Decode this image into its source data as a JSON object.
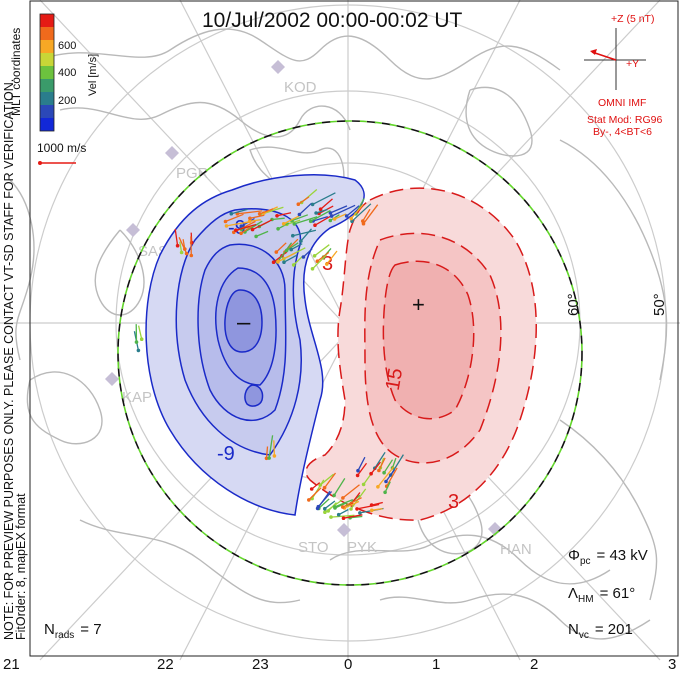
{
  "title": "10/Jul/2002 00:00-00:02 UT",
  "note_line1": "NOTE: FOR PREVIEW PURPOSES ONLY. PLEASE CONTACT VT-SD STAFF FOR VERIFICATION.",
  "note_line2": "FitOrder: 8, mapEX format",
  "coords_label": "MLT coordinates",
  "colorbar": {
    "label": "Vel [m/s]",
    "ticks": [
      "600",
      "400",
      "200"
    ],
    "colors": [
      "#e51b15",
      "#f06a1c",
      "#f7a825",
      "#9ad43b",
      "#4fb44a",
      "#2a7d8c",
      "#2b48b8",
      "#1228d8"
    ]
  },
  "scale_vector": "1000 m/s",
  "stations": [
    "KOD",
    "PGR",
    "SAS",
    "KAP",
    "STO",
    "PYK",
    "HAN"
  ],
  "lat_labels": [
    "60°",
    "50°"
  ],
  "mlt_labels": [
    "21",
    "22",
    "23",
    "0",
    "1",
    "2",
    "3"
  ],
  "contours": {
    "negative": [
      "-9"
    ],
    "positive": [
      "3",
      "15",
      "3"
    ],
    "min_marker": "–",
    "max_marker": "+"
  },
  "imf": {
    "z_label": "+Z (5 nT)",
    "y_label": "+Y",
    "source": "OMNI IMF",
    "model": "Stat Mod: RG96",
    "condition": "By-, 4<BT<6"
  },
  "stats": {
    "phi_label": "Φ",
    "phi_sub": "pc",
    "phi_value": "= 43 kV",
    "lambda_label": "Λ",
    "lambda_sub": "HM",
    "lambda_value": "= 61°",
    "nvc_label": "N",
    "nvc_sub": "vc",
    "nvc_value": "= 201",
    "nrads_label": "N",
    "nrads_sub": "rads",
    "nrads_value": "= 7"
  },
  "colors": {
    "negative_fill": "#d6d9f3",
    "negative_line": "#1a2ac8",
    "positive_fill": "#f8dada",
    "positive_line": "#d81a1a",
    "boundary_green": "#62d62a",
    "coast": "#b9b9b9",
    "grid": "#c8c8c8"
  }
}
